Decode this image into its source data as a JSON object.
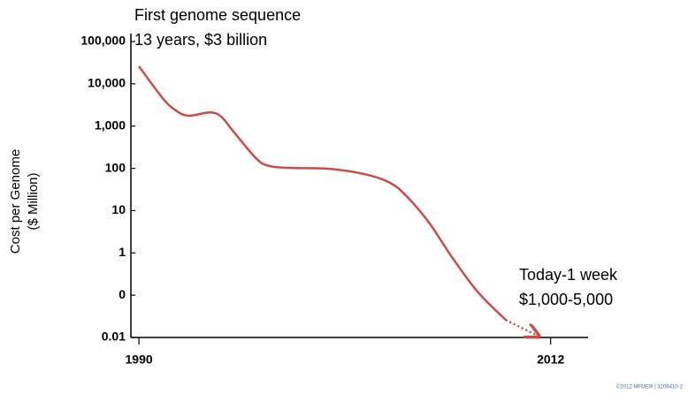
{
  "chart_data": {
    "type": "line",
    "log_scale": "y",
    "y_label": [
      "Cost per Genome",
      "($ Million)"
    ],
    "annotations": [
      "First genome sequence",
      "13 years, $3 billion",
      "Today-1 week",
      "$1,000-5,000"
    ],
    "footer": "©2012 MFMER | 3209410-2",
    "xlim": [
      1989.57,
      2014
    ],
    "xticks": [
      1990,
      2012
    ],
    "ylim": [
      0.01,
      100000
    ],
    "yticks": [
      {
        "value": 100000,
        "label": "100,000"
      },
      {
        "value": 10000,
        "label": "10,000"
      },
      {
        "value": 1000,
        "label": "1,000"
      },
      100,
      10,
      1,
      {
        "value": 0.1,
        "label": "0"
      },
      0.01
    ],
    "series": [
      {
        "color": "#cc4b45",
        "style": "solid",
        "x": [
          1990,
          1991.3,
          1992,
          1992.65,
          1993.8,
          1994.4,
          1995.1,
          1996.3,
          1997,
          1998.2,
          2000.1,
          2002,
          2003.4,
          2004.3,
          2005.5,
          2006.7,
          2008.1,
          2009.6
        ],
        "values": [
          26000,
          4400,
          2300,
          1760,
          2100,
          1660,
          700,
          166,
          113,
          102,
          98,
          74,
          46,
          22,
          5.2,
          0.83,
          0.12,
          0.026
        ]
      },
      {
        "color": "#cc4b45",
        "style": "dotted",
        "x": [
          2009.6,
          2011.3
        ],
        "values": [
          0.026,
          0.011
        ]
      }
    ]
  }
}
